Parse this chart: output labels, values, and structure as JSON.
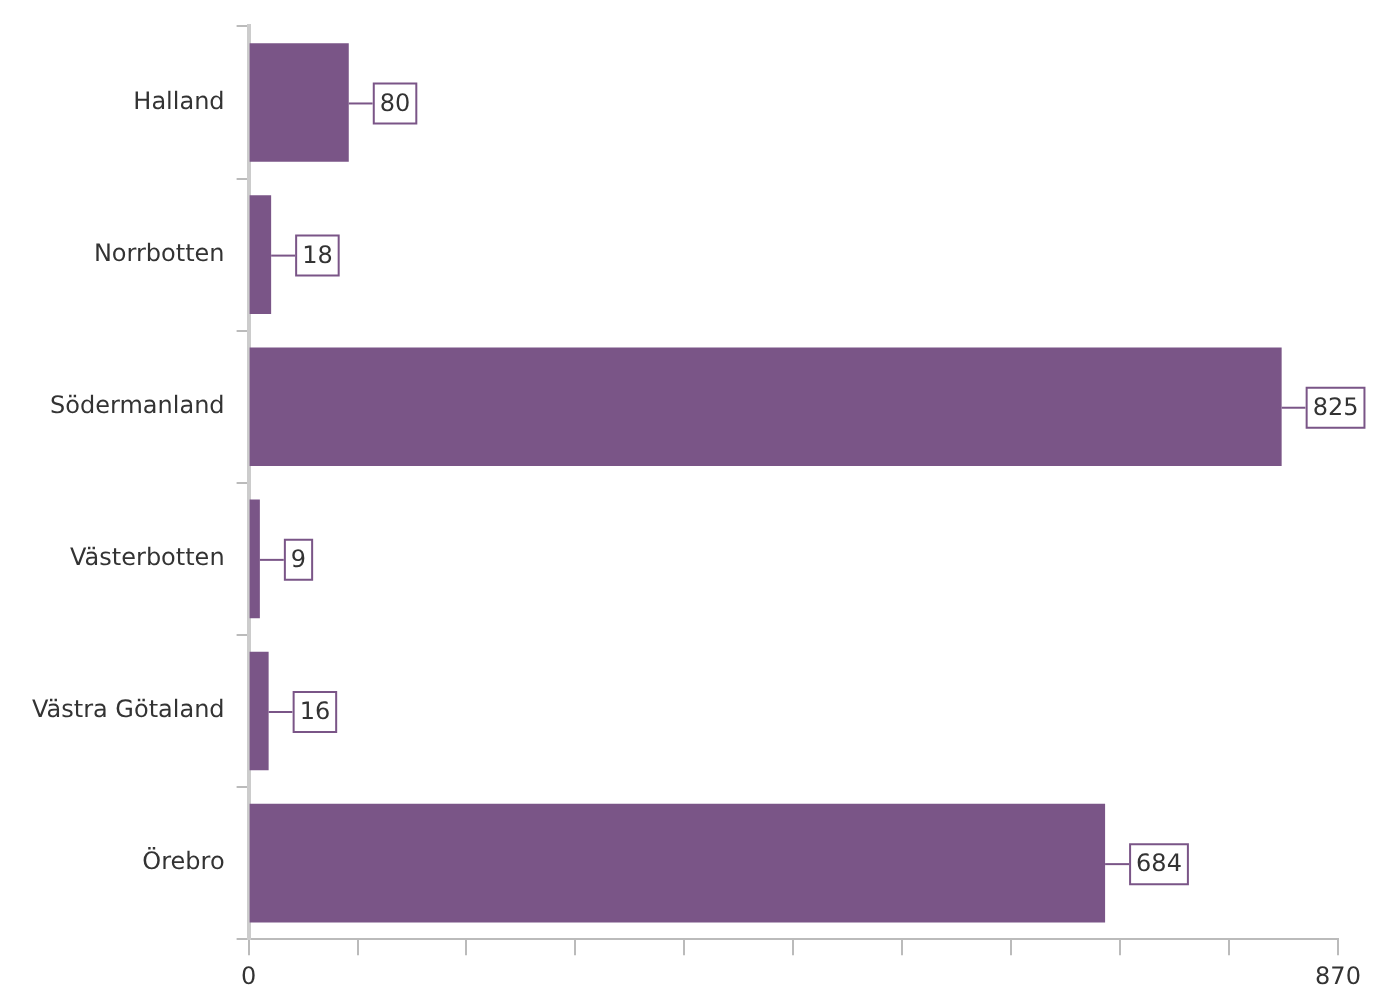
{
  "chart_data": {
    "type": "bar",
    "orientation": "horizontal",
    "categories": [
      "Halland",
      "Norrbotten",
      "Södermanland",
      "Västerbotten",
      "Västra Götaland",
      "Örebro"
    ],
    "values": [
      80,
      18,
      825,
      9,
      16,
      684
    ],
    "color": "#7a5587",
    "xlim": [
      0,
      870
    ],
    "xticks": [
      0,
      {
        "value": 87,
        "label": null
      },
      {
        "value": 174,
        "label": null
      },
      {
        "value": 261,
        "label": null
      },
      {
        "value": 348,
        "label": null
      },
      {
        "value": 435,
        "label": null
      },
      {
        "value": 522,
        "label": null
      },
      {
        "value": 609,
        "label": null
      },
      {
        "value": 696,
        "label": null
      },
      {
        "value": 783,
        "label": null
      },
      870
    ],
    "data_labels": true,
    "grid": false,
    "legend": false
  }
}
